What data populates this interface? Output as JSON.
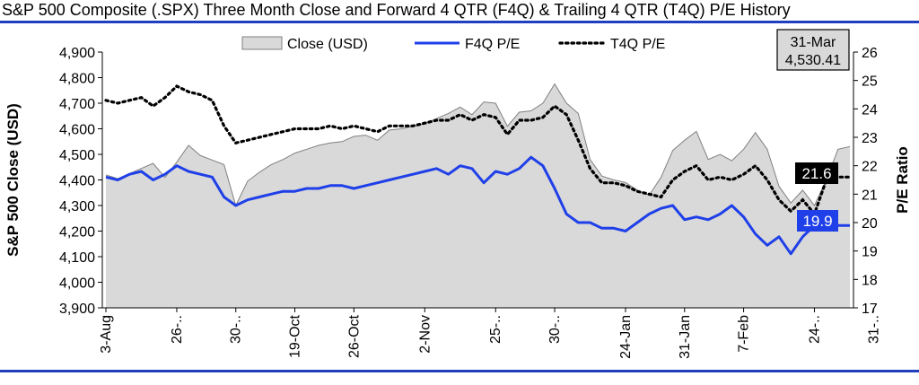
{
  "title": "S&P 500 Composite (.SPX) Three Month Close and Forward 4 QTR (F4Q) & Trailing 4 QTR (T4Q) P/E History",
  "chart_data": {
    "type": "area",
    "ylabel_left": "S&P 500 Close (USD)",
    "ylabel_right": "P/E Ratio",
    "ylim_left": [
      3900,
      4900
    ],
    "ylim_right": [
      17,
      26
    ],
    "left_ticks": [
      "3,900",
      "4,000",
      "4,100",
      "4,200",
      "4,300",
      "4,400",
      "4,500",
      "4,600",
      "4,700",
      "4,800",
      "4,900"
    ],
    "right_ticks": [
      "17",
      "18",
      "19",
      "20",
      "21",
      "22",
      "23",
      "24",
      "25",
      "26"
    ],
    "x_tick_labels": [
      "3-Aug",
      "26-..",
      "30-..",
      "19-Oct",
      "26-Oct",
      "2-Nov",
      "25-..",
      "30-..",
      "24-Jan",
      "31-Jan",
      "7-Feb",
      "24-..",
      "31-.."
    ],
    "x_tick_positions": [
      0,
      6,
      11,
      16,
      21,
      27,
      33,
      38,
      44,
      49,
      54,
      60,
      65
    ],
    "legend": [
      "Close (USD)",
      "F4Q P/E",
      "T4Q P/E"
    ],
    "legend_position": "top-center",
    "colors": {
      "close_fill": "#d9d9d9",
      "close_line": "#808080",
      "f4q": "#1f3fe8",
      "t4q": "#000000"
    },
    "callout": {
      "date": "31-Mar",
      "value": "4,530.41"
    },
    "f4q_last_label": "19.9",
    "t4q_last_label": "21.6",
    "series": [
      {
        "name": "Close (USD)",
        "axis": "left",
        "values": [
          4420,
          4405,
          4425,
          4445,
          4465,
          4410,
          4470,
          4535,
          4495,
          4478,
          4460,
          4300,
          4395,
          4430,
          4460,
          4480,
          4505,
          4520,
          4535,
          4545,
          4550,
          4570,
          4575,
          4555,
          4595,
          4600,
          4610,
          4620,
          4640,
          4660,
          4685,
          4655,
          4705,
          4700,
          4610,
          4665,
          4670,
          4700,
          4775,
          4700,
          4660,
          4480,
          4415,
          4400,
          4390,
          4360,
          4340,
          4410,
          4515,
          4555,
          4590,
          4480,
          4500,
          4475,
          4520,
          4585,
          4520,
          4375,
          4310,
          4360,
          4300,
          4400,
          4520,
          4530
        ]
      },
      {
        "name": "F4Q P/E",
        "axis": "right",
        "values": [
          21.6,
          21.5,
          21.7,
          21.8,
          21.5,
          21.7,
          22.0,
          21.8,
          21.7,
          21.6,
          20.9,
          20.6,
          20.8,
          20.9,
          21.0,
          21.1,
          21.1,
          21.2,
          21.2,
          21.3,
          21.3,
          21.2,
          21.3,
          21.4,
          21.5,
          21.6,
          21.7,
          21.8,
          21.9,
          21.7,
          22.0,
          21.9,
          21.4,
          21.8,
          21.7,
          21.9,
          22.3,
          22.0,
          21.2,
          20.3,
          20.0,
          20.0,
          19.8,
          19.8,
          19.7,
          20.0,
          20.3,
          20.5,
          20.6,
          20.1,
          20.2,
          20.1,
          20.3,
          20.6,
          20.2,
          19.6,
          19.2,
          19.5,
          18.9,
          19.5,
          19.9,
          19.9,
          19.9,
          19.9
        ]
      },
      {
        "name": "T4Q P/E",
        "axis": "right",
        "values": [
          24.3,
          24.2,
          24.3,
          24.4,
          24.1,
          24.4,
          24.8,
          24.6,
          24.5,
          24.3,
          23.4,
          22.8,
          22.9,
          23.0,
          23.1,
          23.2,
          23.3,
          23.3,
          23.3,
          23.4,
          23.3,
          23.4,
          23.3,
          23.2,
          23.4,
          23.4,
          23.4,
          23.5,
          23.6,
          23.6,
          23.8,
          23.6,
          23.8,
          23.7,
          23.1,
          23.6,
          23.6,
          23.7,
          24.1,
          23.8,
          22.9,
          21.9,
          21.4,
          21.4,
          21.3,
          21.1,
          21.0,
          20.9,
          21.5,
          21.8,
          22.0,
          21.5,
          21.6,
          21.5,
          21.7,
          22.0,
          21.5,
          20.8,
          20.4,
          20.8,
          20.3,
          21.5,
          21.6,
          21.6
        ]
      }
    ]
  }
}
